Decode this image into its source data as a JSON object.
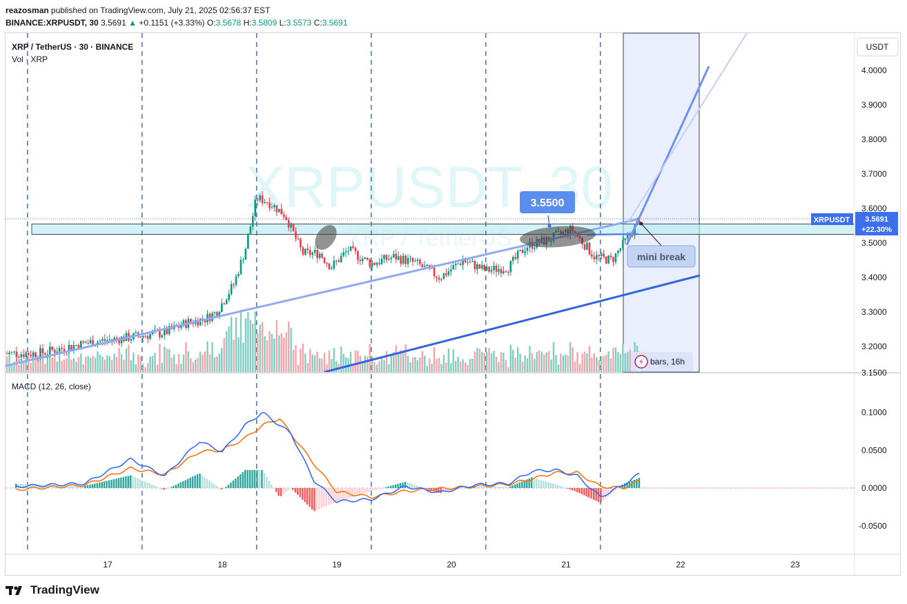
{
  "header": {
    "author": "reazosman",
    "published_text": "published on TradingView.com, July 21, 2025 02:56:37 EST",
    "symbol": "BINANCE:XRPUSDT, 30",
    "last": "3.5691",
    "change": "+0.1151 (+3.33%)",
    "o_label": "O:",
    "o": "3.5678",
    "h_label": "H:",
    "h": "3.5809",
    "l_label": "L:",
    "l": "3.5573",
    "c_label": "C:",
    "c": "3.5691"
  },
  "legend": {
    "title": "XRP / TetherUS · 30 · BINANCE",
    "vol": "Vol · XRP",
    "macd": "MACD (12, 26, close)"
  },
  "watermark": {
    "main": "XRPUSDT, 30",
    "sub": "XRP / TetherUS"
  },
  "price_scale": {
    "currency": "USDT",
    "ticks": [
      "4.0000",
      "3.9000",
      "3.8000",
      "3.7000",
      "3.6000",
      "3.5000",
      "3.4000",
      "3.3000",
      "3.2000",
      "3.1500"
    ],
    "tag_symbol": "XRPUSDT",
    "tag_price": "3.5691",
    "tag_pct": "+22.30%"
  },
  "macd_scale": {
    "ticks": [
      "0.1000",
      "0.0500",
      "0.0000",
      "-0.0500"
    ]
  },
  "time_axis": {
    "labels": [
      "17",
      "18",
      "19",
      "20",
      "21",
      "22",
      "23"
    ]
  },
  "annotations": {
    "price_callout": "3.5500",
    "mini_break": "mini break",
    "bars_tag": "bars, 16h"
  },
  "footer": {
    "brand": "TradingView"
  },
  "colors": {
    "up": "#089981",
    "down": "#f23645",
    "macd": "#2962ff",
    "signal": "#ff6d00",
    "zone": "#b2ebf2",
    "trend_light": "#8fa9f5",
    "trend_dark": "#3463e0",
    "range": "#e3eafc"
  },
  "chart_data": {
    "type": "candlestick",
    "symbol": "XRPUSDT",
    "interval": "30",
    "x_dates": [
      "17",
      "18",
      "19",
      "20",
      "21",
      "22",
      "23"
    ],
    "price_ylim": [
      3.15,
      4.05
    ],
    "price_path": [
      [
        16.4,
        3.18
      ],
      [
        16.8,
        3.21
      ],
      [
        17.5,
        3.24
      ],
      [
        17.7,
        3.27
      ],
      [
        17.85,
        3.28
      ],
      [
        17.95,
        3.3
      ],
      [
        18.1,
        3.38
      ],
      [
        18.2,
        3.48
      ],
      [
        18.3,
        3.63
      ],
      [
        18.4,
        3.62
      ],
      [
        18.55,
        3.58
      ],
      [
        18.7,
        3.47
      ],
      [
        18.85,
        3.47
      ],
      [
        18.95,
        3.43
      ],
      [
        19.1,
        3.48
      ],
      [
        19.3,
        3.44
      ],
      [
        19.5,
        3.46
      ],
      [
        19.7,
        3.44
      ],
      [
        19.9,
        3.4
      ],
      [
        20.1,
        3.45
      ],
      [
        20.3,
        3.42
      ],
      [
        20.5,
        3.43
      ],
      [
        20.65,
        3.49
      ],
      [
        20.85,
        3.51
      ],
      [
        21.05,
        3.54
      ],
      [
        21.25,
        3.46
      ],
      [
        21.4,
        3.45
      ],
      [
        21.55,
        3.52
      ],
      [
        21.65,
        3.5691
      ]
    ],
    "macd_ylim": [
      -0.085,
      0.17
    ],
    "macd_line": [
      [
        16.2,
        0.002
      ],
      [
        16.8,
        0.006
      ],
      [
        17.2,
        0.038
      ],
      [
        17.5,
        0.016
      ],
      [
        17.8,
        0.062
      ],
      [
        18.0,
        0.048
      ],
      [
        18.2,
        0.083
      ],
      [
        18.35,
        0.1
      ],
      [
        18.6,
        0.072
      ],
      [
        18.8,
        0.01
      ],
      [
        19.0,
        -0.018
      ],
      [
        19.3,
        -0.015
      ],
      [
        19.6,
        0.002
      ],
      [
        19.9,
        -0.006
      ],
      [
        20.2,
        0.004
      ],
      [
        20.5,
        0.006
      ],
      [
        20.7,
        0.022
      ],
      [
        20.9,
        0.024
      ],
      [
        21.1,
        0.016
      ],
      [
        21.3,
        -0.012
      ],
      [
        21.5,
        0.004
      ],
      [
        21.65,
        0.02
      ]
    ],
    "signal_line": [
      [
        16.2,
        -0.002
      ],
      [
        16.8,
        0.004
      ],
      [
        17.2,
        0.026
      ],
      [
        17.5,
        0.018
      ],
      [
        17.8,
        0.048
      ],
      [
        18.0,
        0.05
      ],
      [
        18.2,
        0.066
      ],
      [
        18.35,
        0.083
      ],
      [
        18.5,
        0.092
      ],
      [
        18.8,
        0.032
      ],
      [
        19.0,
        -0.005
      ],
      [
        19.3,
        -0.012
      ],
      [
        19.6,
        -0.004
      ],
      [
        19.9,
        -0.001
      ],
      [
        20.2,
        0.002
      ],
      [
        20.5,
        0.005
      ],
      [
        20.7,
        0.012
      ],
      [
        20.9,
        0.02
      ],
      [
        21.1,
        0.02
      ],
      [
        21.3,
        0.002
      ],
      [
        21.5,
        0.0
      ],
      [
        21.65,
        0.01
      ]
    ],
    "session_lines_x": [
      16.3,
      17.3,
      18.3,
      19.3,
      20.3,
      21.3
    ],
    "support_zone": [
      3.525,
      3.555
    ],
    "callout_price": 3.55
  }
}
